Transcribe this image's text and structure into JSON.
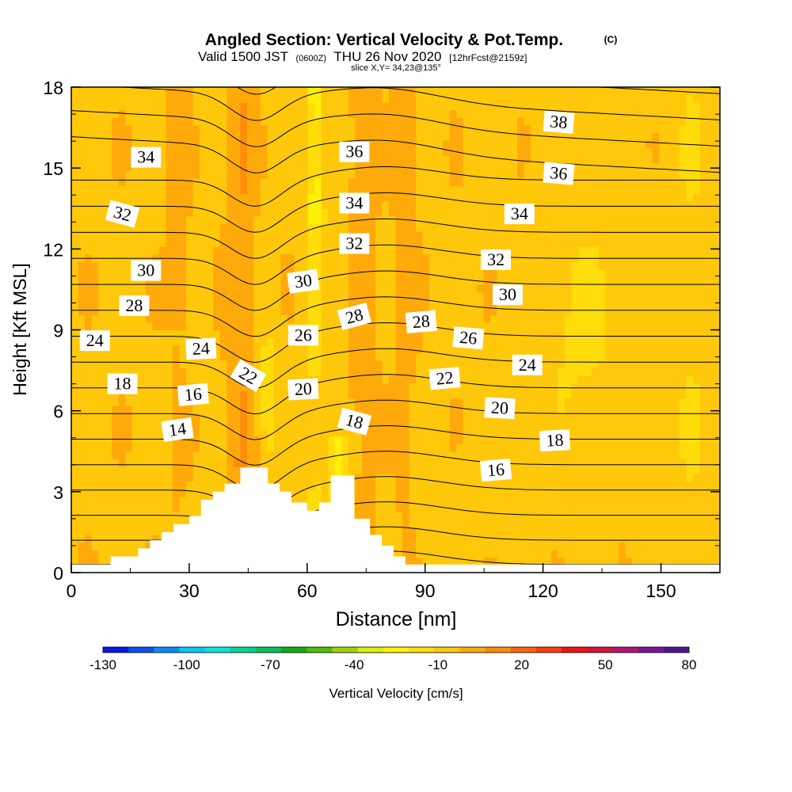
{
  "header": {
    "title": "Angled Section: Vertical Velocity & Pot.Temp.",
    "title_mark": "(C)",
    "valid_prefix": "Valid 1500 JST",
    "valid_utc": "(0600Z)",
    "valid_date": "THU 26 Nov 2020",
    "forecast": "[12hrFcst@2159z]",
    "slice": "slice X,Y= 34,23@135°"
  },
  "chart_data": {
    "type": "heatmap",
    "title": "Angled Section: Vertical Velocity & Pot.Temp.",
    "xlabel": "Distance [nm]",
    "ylabel": "Height [Kft MSL]",
    "xlim": [
      0,
      165
    ],
    "ylim": [
      0,
      18
    ],
    "xticks": [
      "0",
      "30",
      "60",
      "90",
      "120",
      "150"
    ],
    "yticks": [
      "0",
      "3",
      "6",
      "9",
      "12",
      "15",
      "18"
    ],
    "colorbar": {
      "label": "Vertical Velocity [cm/s]",
      "min": -130,
      "max": 80,
      "step": 10,
      "tick_labels": [
        "-130",
        "-100",
        "-70",
        "-40",
        "-10",
        "20",
        "50",
        "80"
      ],
      "colors": [
        "#0a14f0",
        "#0a50f5",
        "#0a8cf5",
        "#0ac8f5",
        "#0ae6d2",
        "#0ad296",
        "#0abe5a",
        "#14aa14",
        "#50be0a",
        "#a0d20a",
        "#dcf00a",
        "#fff00a",
        "#ffdc0a",
        "#ffc80a",
        "#ffaa0a",
        "#ff8c0a",
        "#ff640a",
        "#ff3c0a",
        "#f01414",
        "#d2143c",
        "#b4146e",
        "#781496",
        "#501496"
      ]
    },
    "terrain_profile": {
      "x_nm": [
        0,
        10,
        10,
        17,
        17,
        20,
        20,
        23,
        23,
        26,
        26,
        30,
        30,
        33,
        33,
        36,
        36,
        39,
        39,
        43,
        43,
        50,
        50,
        53,
        53,
        56,
        56,
        60,
        60,
        63,
        63,
        66,
        66,
        72,
        72,
        76,
        76,
        79,
        79,
        82,
        82,
        85,
        85,
        165
      ],
      "height_kft": [
        0.3,
        0.3,
        0.6,
        0.6,
        0.9,
        0.9,
        1.2,
        1.2,
        1.5,
        1.5,
        1.8,
        1.8,
        2.1,
        2.1,
        2.7,
        2.7,
        3.0,
        3.0,
        3.3,
        3.3,
        3.9,
        3.9,
        3.3,
        3.3,
        3.0,
        3.0,
        2.6,
        2.6,
        2.3,
        2.3,
        2.6,
        2.6,
        3.6,
        3.6,
        2.0,
        2.0,
        1.4,
        1.4,
        1.0,
        1.0,
        0.6,
        0.6,
        0.3,
        0.3
      ]
    },
    "contour_labels": [
      {
        "text": "14",
        "x": 27,
        "y": 5.3,
        "rot": -8
      },
      {
        "text": "16",
        "x": 31,
        "y": 6.6,
        "rot": -5
      },
      {
        "text": "16",
        "x": 108,
        "y": 3.8,
        "rot": -5
      },
      {
        "text": "18",
        "x": 13,
        "y": 7.0,
        "rot": 0
      },
      {
        "text": "18",
        "x": 72,
        "y": 5.6,
        "rot": 15
      },
      {
        "text": "18",
        "x": 123,
        "y": 4.9,
        "rot": -3
      },
      {
        "text": "20",
        "x": 59,
        "y": 6.8,
        "rot": -3
      },
      {
        "text": "20",
        "x": 109,
        "y": 6.1,
        "rot": 3
      },
      {
        "text": "22",
        "x": 45,
        "y": 7.3,
        "rot": 30
      },
      {
        "text": "22",
        "x": 95,
        "y": 7.2,
        "rot": -5
      },
      {
        "text": "24",
        "x": 6,
        "y": 8.6,
        "rot": 0
      },
      {
        "text": "24",
        "x": 33,
        "y": 8.3,
        "rot": -3
      },
      {
        "text": "24",
        "x": 116,
        "y": 7.7,
        "rot": 0
      },
      {
        "text": "26",
        "x": 59,
        "y": 8.8,
        "rot": 0
      },
      {
        "text": "26",
        "x": 101,
        "y": 8.7,
        "rot": 5
      },
      {
        "text": "28",
        "x": 16,
        "y": 9.9,
        "rot": 0
      },
      {
        "text": "28",
        "x": 72,
        "y": 9.5,
        "rot": -15
      },
      {
        "text": "28",
        "x": 89,
        "y": 9.3,
        "rot": -5
      },
      {
        "text": "30",
        "x": 19,
        "y": 11.2,
        "rot": 0
      },
      {
        "text": "30",
        "x": 59,
        "y": 10.8,
        "rot": -8
      },
      {
        "text": "30",
        "x": 111,
        "y": 10.3,
        "rot": 0
      },
      {
        "text": "32",
        "x": 13,
        "y": 13.3,
        "rot": 15
      },
      {
        "text": "32",
        "x": 72,
        "y": 12.2,
        "rot": 0
      },
      {
        "text": "32",
        "x": 108,
        "y": 11.6,
        "rot": 0
      },
      {
        "text": "34",
        "x": 19,
        "y": 15.4,
        "rot": 0
      },
      {
        "text": "34",
        "x": 72,
        "y": 13.7,
        "rot": 0
      },
      {
        "text": "34",
        "x": 114,
        "y": 13.3,
        "rot": 0
      },
      {
        "text": "36",
        "x": 72,
        "y": 15.6,
        "rot": 0
      },
      {
        "text": "36",
        "x": 124,
        "y": 14.8,
        "rot": 5
      },
      {
        "text": "38",
        "x": 124,
        "y": 16.7,
        "rot": 5
      }
    ]
  }
}
